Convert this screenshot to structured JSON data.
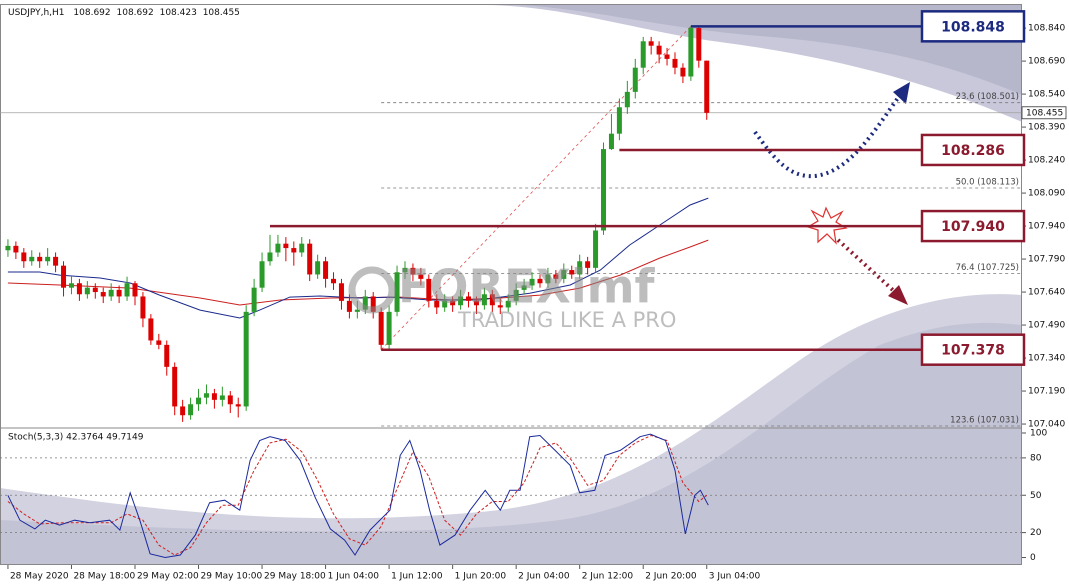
{
  "chart_data": {
    "type": "candlestick",
    "title": "USDJPY,h,H1",
    "header_values": [
      108.692,
      108.692,
      108.423,
      108.455
    ],
    "up_color": "#2a9a2a",
    "down_color": "#dd0000",
    "xlim": [
      -1,
      127.7
    ],
    "xticks": [
      {
        "value": 0,
        "label": "28 May 2020"
      },
      {
        "value": 8,
        "label": "28 May 18:00"
      },
      {
        "value": 16,
        "label": "29 May 02:00"
      },
      {
        "value": 24,
        "label": "29 May 10:00"
      },
      {
        "value": 32,
        "label": "29 May 18:00"
      },
      {
        "value": 40,
        "label": "1 Jun 04:00"
      },
      {
        "value": 48,
        "label": "1 Jun 12:00"
      },
      {
        "value": 56,
        "label": "1 Jun 20:00"
      },
      {
        "value": 64,
        "label": "2 Jun 04:00"
      },
      {
        "value": 72,
        "label": "2 Jun 12:00"
      },
      {
        "value": 80,
        "label": "2 Jun 20:00"
      },
      {
        "value": 88,
        "label": "3 Jun 04:00"
      }
    ],
    "ylim": [
      107.022,
      108.945
    ],
    "yticks": [
      {
        "value": 108.84,
        "label": "108.840"
      },
      {
        "value": 108.69,
        "label": "108.690"
      },
      {
        "value": 108.54,
        "label": "108.540"
      },
      {
        "value": 108.39,
        "label": "108.390"
      },
      {
        "value": 108.24,
        "label": "108.240"
      },
      {
        "value": 108.09,
        "label": "108.090"
      },
      {
        "value": 107.94,
        "label": "107.940"
      },
      {
        "value": 107.79,
        "label": "107.790"
      },
      {
        "value": 107.64,
        "label": "107.640"
      },
      {
        "value": 107.49,
        "label": "107.490"
      },
      {
        "value": 107.34,
        "label": "107.340"
      },
      {
        "value": 107.19,
        "label": "107.190"
      },
      {
        "value": 107.04,
        "label": "107.040"
      }
    ],
    "current_price": 108.455,
    "candles": [
      [
        107.83,
        107.88,
        107.8,
        107.85
      ],
      [
        107.85,
        107.87,
        107.79,
        107.82
      ],
      [
        107.82,
        107.84,
        107.75,
        107.78
      ],
      [
        107.78,
        107.83,
        107.76,
        107.8
      ],
      [
        107.8,
        107.82,
        107.75,
        107.78
      ],
      [
        107.78,
        107.84,
        107.76,
        107.8
      ],
      [
        107.8,
        107.82,
        107.73,
        107.76
      ],
      [
        107.76,
        107.78,
        107.62,
        107.66
      ],
      [
        107.66,
        107.71,
        107.63,
        107.68
      ],
      [
        107.68,
        107.7,
        107.6,
        107.63
      ],
      [
        107.63,
        107.69,
        107.61,
        107.66
      ],
      [
        107.66,
        107.68,
        107.61,
        107.64
      ],
      [
        107.64,
        107.66,
        107.59,
        107.62
      ],
      [
        107.62,
        107.68,
        107.6,
        107.65
      ],
      [
        107.65,
        107.67,
        107.59,
        107.62
      ],
      [
        107.62,
        107.71,
        107.6,
        107.68
      ],
      [
        107.68,
        107.69,
        107.58,
        107.62
      ],
      [
        107.62,
        107.64,
        107.48,
        107.52
      ],
      [
        107.52,
        107.54,
        107.4,
        107.42
      ],
      [
        107.42,
        107.45,
        107.38,
        107.4
      ],
      [
        107.4,
        107.42,
        107.26,
        107.3
      ],
      [
        107.3,
        107.32,
        107.08,
        107.12
      ],
      [
        107.12,
        107.15,
        107.05,
        107.08
      ],
      [
        107.08,
        107.16,
        107.06,
        107.13
      ],
      [
        107.13,
        107.2,
        107.1,
        107.16
      ],
      [
        107.16,
        107.22,
        107.13,
        107.18
      ],
      [
        107.18,
        107.2,
        107.11,
        107.15
      ],
      [
        107.15,
        107.21,
        107.12,
        107.17
      ],
      [
        107.17,
        107.19,
        107.09,
        107.13
      ],
      [
        107.13,
        107.16,
        107.07,
        107.12
      ],
      [
        107.12,
        107.58,
        107.1,
        107.55
      ],
      [
        107.55,
        107.7,
        107.53,
        107.66
      ],
      [
        107.66,
        107.82,
        107.64,
        107.78
      ],
      [
        107.78,
        107.9,
        107.76,
        107.82
      ],
      [
        107.82,
        107.9,
        107.8,
        107.86
      ],
      [
        107.86,
        107.89,
        107.78,
        107.84
      ],
      [
        107.84,
        107.87,
        107.76,
        107.82
      ],
      [
        107.82,
        107.89,
        107.8,
        107.86
      ],
      [
        107.86,
        107.88,
        107.69,
        107.72
      ],
      [
        107.72,
        107.81,
        107.7,
        107.78
      ],
      [
        107.78,
        107.8,
        107.66,
        107.7
      ],
      [
        107.7,
        107.73,
        107.65,
        107.68
      ],
      [
        107.68,
        107.7,
        107.56,
        107.6
      ],
      [
        107.6,
        107.63,
        107.52,
        107.55
      ],
      [
        107.55,
        107.6,
        107.52,
        107.56
      ],
      [
        107.56,
        107.65,
        107.54,
        107.62
      ],
      [
        107.62,
        107.64,
        107.52,
        107.55
      ],
      [
        107.55,
        107.57,
        107.378,
        107.4
      ],
      [
        107.4,
        107.58,
        107.38,
        107.55
      ],
      [
        107.55,
        107.76,
        107.53,
        107.73
      ],
      [
        107.73,
        107.78,
        107.7,
        107.75
      ],
      [
        107.75,
        107.77,
        107.69,
        107.72
      ],
      [
        107.72,
        107.75,
        107.67,
        107.7
      ],
      [
        107.7,
        107.72,
        107.57,
        107.6
      ],
      [
        107.6,
        107.63,
        107.54,
        107.57
      ],
      [
        107.57,
        107.63,
        107.55,
        107.6
      ],
      [
        107.6,
        107.62,
        107.55,
        107.58
      ],
      [
        107.58,
        107.65,
        107.56,
        107.62
      ],
      [
        107.62,
        107.64,
        107.57,
        107.6
      ],
      [
        107.6,
        107.62,
        107.54,
        107.58
      ],
      [
        107.58,
        107.66,
        107.56,
        107.63
      ],
      [
        107.63,
        107.65,
        107.55,
        107.58
      ],
      [
        107.58,
        107.61,
        107.54,
        107.57
      ],
      [
        107.57,
        107.63,
        107.55,
        107.6
      ],
      [
        107.6,
        107.68,
        107.58,
        107.65
      ],
      [
        107.65,
        107.7,
        107.63,
        107.67
      ],
      [
        107.67,
        107.73,
        107.65,
        107.7
      ],
      [
        107.7,
        107.72,
        107.66,
        107.68
      ],
      [
        107.68,
        107.75,
        107.66,
        107.72
      ],
      [
        107.72,
        107.74,
        107.68,
        107.7
      ],
      [
        107.7,
        107.77,
        107.68,
        107.74
      ],
      [
        107.74,
        107.76,
        107.7,
        107.72
      ],
      [
        107.72,
        107.81,
        107.7,
        107.78
      ],
      [
        107.78,
        107.8,
        107.72,
        107.75
      ],
      [
        107.75,
        107.95,
        107.73,
        107.92
      ],
      [
        107.92,
        108.32,
        107.9,
        108.29
      ],
      [
        108.29,
        108.45,
        108.286,
        108.36
      ],
      [
        108.36,
        108.52,
        108.33,
        108.48
      ],
      [
        108.48,
        108.6,
        108.45,
        108.55
      ],
      [
        108.55,
        108.7,
        108.52,
        108.66
      ],
      [
        108.66,
        108.8,
        108.63,
        108.78
      ],
      [
        108.78,
        108.8,
        108.72,
        108.76
      ],
      [
        108.76,
        108.78,
        108.68,
        108.72
      ],
      [
        108.72,
        108.75,
        108.67,
        108.7
      ],
      [
        108.7,
        108.73,
        108.63,
        108.66
      ],
      [
        108.66,
        108.68,
        108.59,
        108.62
      ],
      [
        108.62,
        108.848,
        108.6,
        108.84
      ],
      [
        108.84,
        108.845,
        108.66,
        108.692
      ],
      [
        108.692,
        108.692,
        108.423,
        108.455
      ]
    ],
    "ma_fast": {
      "color": "#1a2a8c",
      "x": [
        0,
        4,
        6.5,
        11.6,
        15.4,
        19.1,
        24.2,
        29.2,
        31.7,
        35.5,
        39.3,
        44.3,
        48.1,
        53.1,
        59.4,
        65.7,
        70.8,
        74.6,
        78.3,
        82.1,
        85.9,
        88.2
      ],
      "values": [
        107.731,
        107.731,
        107.717,
        107.704,
        107.681,
        107.626,
        107.558,
        107.522,
        107.558,
        107.617,
        107.622,
        107.613,
        107.617,
        107.604,
        107.604,
        107.635,
        107.672,
        107.74,
        107.854,
        107.945,
        108.036,
        108.067
      ]
    },
    "ma_slow": {
      "color": "#cc1f1f",
      "x": [
        0,
        6.5,
        15.4,
        24.2,
        29.2,
        34.3,
        40.6,
        49.4,
        55.7,
        62,
        67,
        72,
        77.1,
        82.1,
        85.9,
        88.2
      ],
      "values": [
        107.681,
        107.672,
        107.658,
        107.613,
        107.581,
        107.604,
        107.613,
        107.617,
        107.604,
        107.613,
        107.626,
        107.658,
        107.717,
        107.795,
        107.845,
        107.876
      ]
    },
    "levels": [
      {
        "value": 108.848,
        "from": 86,
        "color": "#1c2a80"
      },
      {
        "value": 108.286,
        "from": 77,
        "color": "#8b1a2e"
      },
      {
        "value": 107.94,
        "value_label": "107.940",
        "from": 33,
        "color": "#8b1a2e"
      },
      {
        "value": 107.378,
        "from": 47,
        "color": "#8b1a2e"
      }
    ],
    "fib_levels": [
      {
        "value": 108.501,
        "label": "23.6 (108.501)"
      },
      {
        "value": 108.113,
        "label": "50.0 (108.113)"
      },
      {
        "value": 107.725,
        "label": "76.4 (107.725)"
      },
      {
        "value": 107.031,
        "label": "123.6 (107.031)"
      }
    ],
    "watermark": {
      "brand": "FOREXimf",
      "slogan": "TRADING LIKE A PRO"
    },
    "stochastic": {
      "title": "Stoch(5,3,3) 42.3764 49.7149",
      "ylim": [
        -6,
        104
      ],
      "yticks": [
        100,
        80,
        50,
        20,
        0
      ],
      "main": {
        "color": "#1a2a9c",
        "x": [
          0,
          1.5,
          3.4,
          4.7,
          6.5,
          8.4,
          10.3,
          12.8,
          14.1,
          15.4,
          16.6,
          17.9,
          19.8,
          21.7,
          23.6,
          25.4,
          27.3,
          29.2,
          30.5,
          31.7,
          33,
          34.9,
          36.8,
          38.7,
          40.6,
          42.4,
          43.7,
          45.6,
          48.1,
          49.4,
          50.6,
          51.9,
          53.1,
          54.4,
          56.3,
          58.2,
          60.1,
          62,
          63.2,
          64.5,
          65.7,
          67,
          68.9,
          70.8,
          72,
          73.9,
          75.2,
          77.1,
          79.6,
          80.9,
          82.8,
          84,
          85.3,
          86.5,
          87.2,
          88.2
        ],
        "values": [
          50,
          30,
          23,
          30,
          26,
          30,
          28,
          30,
          22,
          52,
          30,
          3,
          0,
          2,
          18,
          44,
          46,
          38,
          78,
          94,
          97,
          94,
          78,
          48,
          23,
          14,
          2,
          22,
          38,
          82,
          94,
          70,
          38,
          10,
          18,
          38,
          54,
          38,
          54,
          54,
          97,
          98,
          86,
          74,
          52,
          54,
          82,
          86,
          97,
          99,
          94,
          70,
          19,
          50,
          54,
          42
        ]
      },
      "signal": {
        "color": "#d02020",
        "x": [
          0,
          2,
          4,
          7,
          10,
          13,
          15,
          17,
          19,
          21,
          23,
          25,
          27,
          29,
          31,
          33,
          35,
          37,
          39,
          41,
          43,
          45,
          47,
          49,
          51,
          53,
          55,
          57,
          59,
          61,
          63,
          65,
          67,
          69,
          71,
          73,
          75,
          77,
          79,
          81,
          83,
          85,
          87,
          88
        ],
        "values": [
          45,
          35,
          27,
          28,
          28,
          28,
          35,
          30,
          10,
          2,
          8,
          28,
          42,
          42,
          70,
          92,
          95,
          85,
          62,
          35,
          15,
          10,
          25,
          55,
          85,
          65,
          30,
          18,
          35,
          45,
          45,
          60,
          88,
          92,
          78,
          58,
          62,
          82,
          92,
          98,
          94,
          60,
          45,
          50
        ]
      }
    }
  }
}
